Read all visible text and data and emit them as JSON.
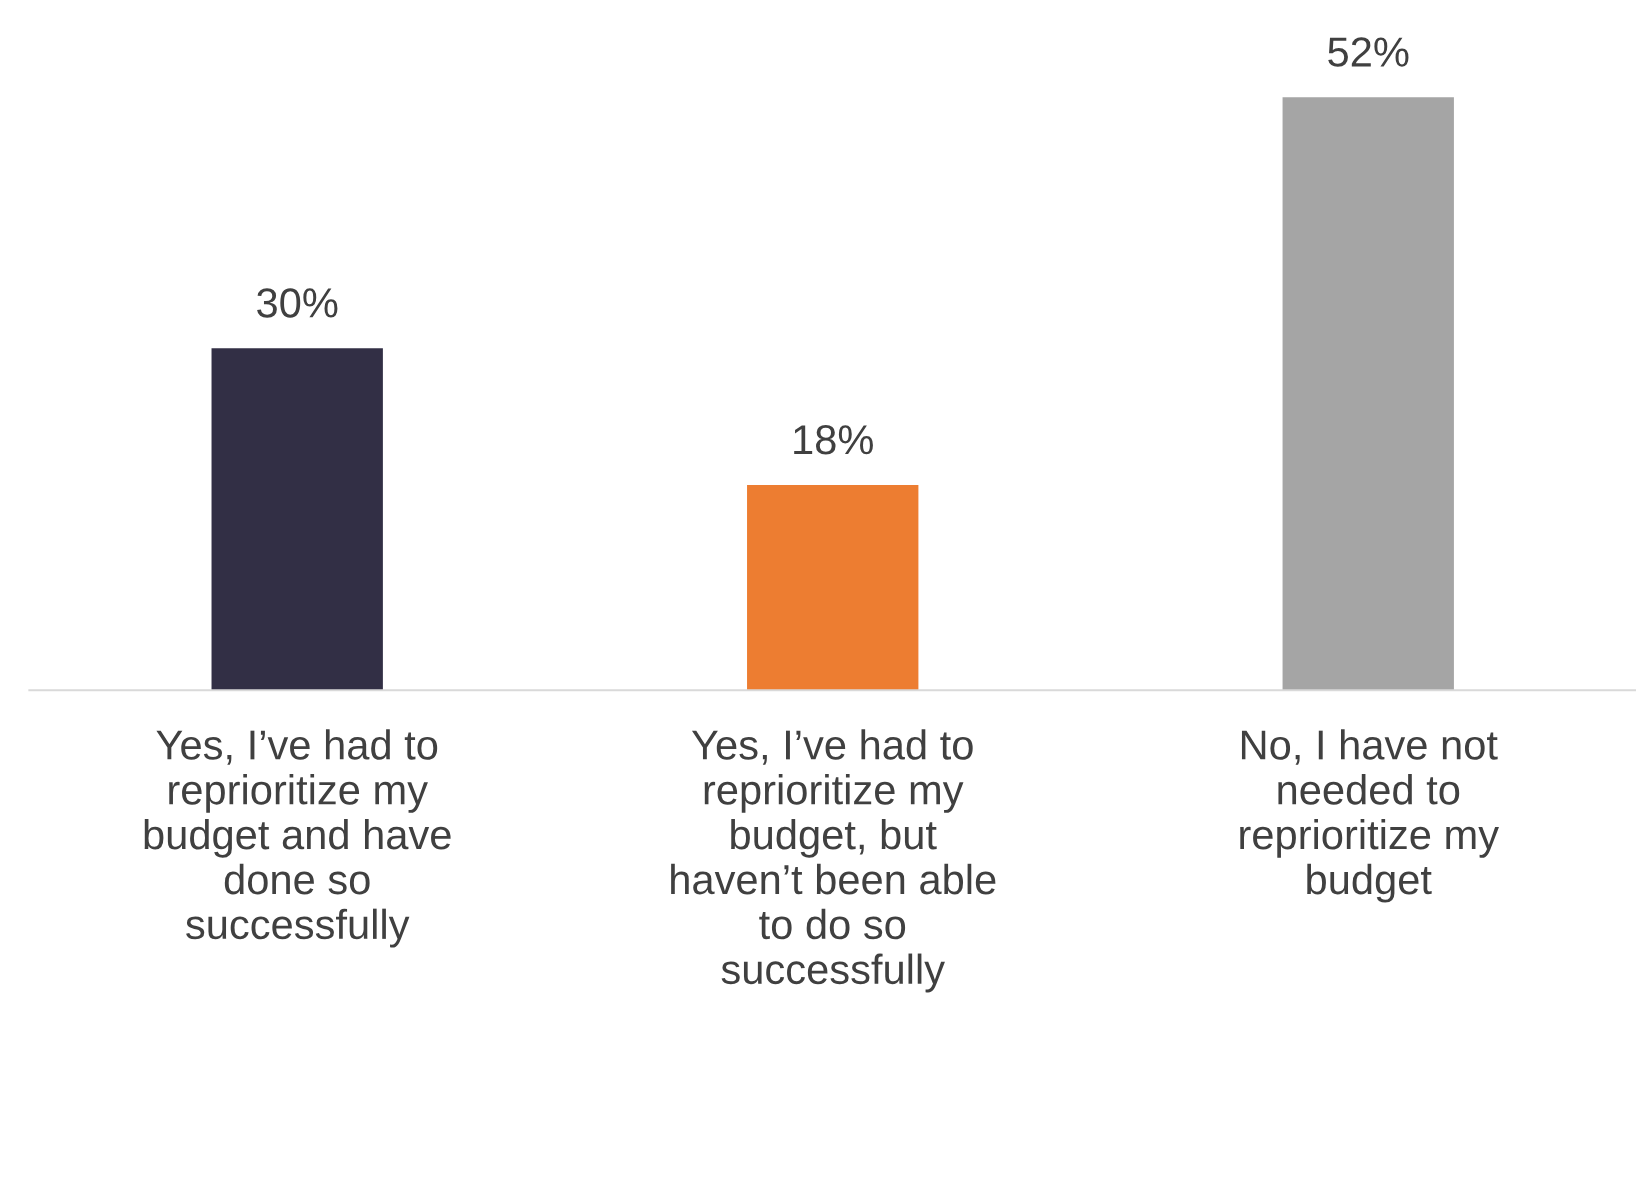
{
  "chart_data": {
    "type": "bar",
    "categories": [
      "Yes, I’ve had to reprioritize my budget and have done so successfully",
      "Yes, I’ve had to reprioritize my budget, but haven’t been able to do so successfully",
      "No, I have not needed to reprioritize my budget"
    ],
    "values": [
      30,
      18,
      52
    ],
    "colors": [
      "#322f45",
      "#ed7d31",
      "#a5a5a5"
    ],
    "value_labels": [
      "30%",
      "18%",
      "52%"
    ],
    "tick_labels": "x",
    "grid": false,
    "legend": false
  }
}
